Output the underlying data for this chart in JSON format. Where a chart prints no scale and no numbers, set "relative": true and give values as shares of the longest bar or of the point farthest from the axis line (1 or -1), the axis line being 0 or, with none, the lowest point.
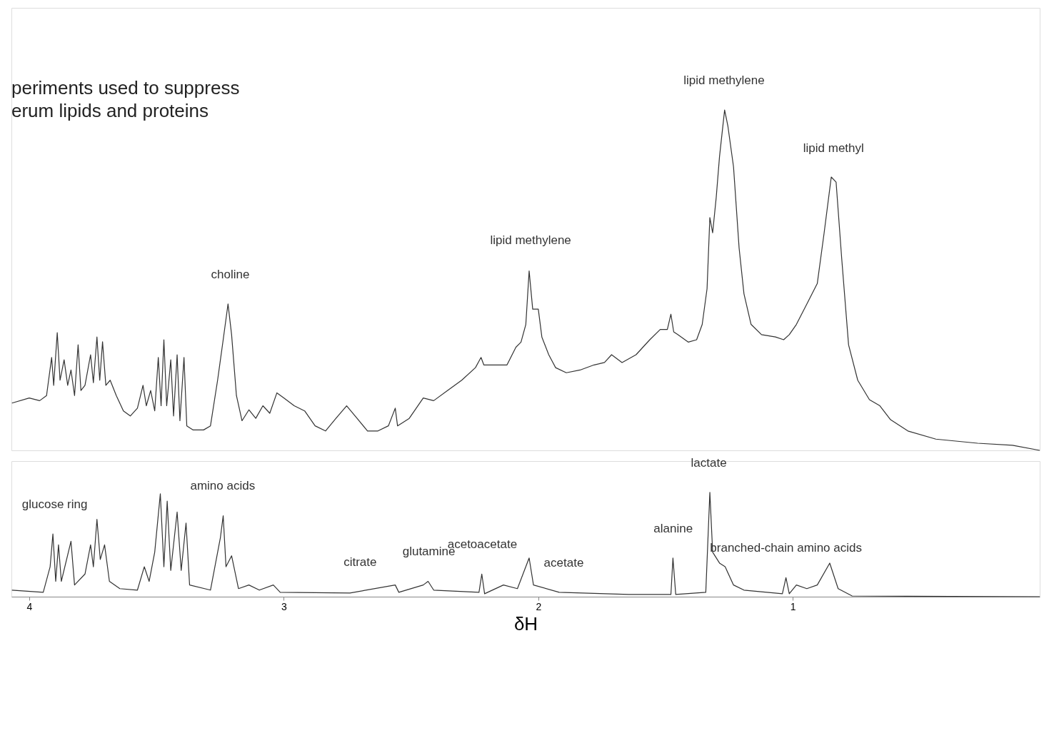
{
  "chart_data": [
    {
      "type": "line",
      "relative": true,
      "xlim": [
        4.07,
        0.03
      ],
      "xticks": [
        4,
        3,
        2,
        1
      ],
      "tick_labels": false,
      "grid": false,
      "marker": "none",
      "line_style": "solid",
      "annotations": [
        "periments used to suppress",
        "erum lipids and proteins",
        {
          "text": "choline",
          "x": 3.21,
          "y": 0.43
        },
        {
          "text": "lipid methylene",
          "x": 2.03,
          "y": 0.53
        },
        {
          "text": "lipid methylene",
          "x": 1.27,
          "y": 1.0
        },
        {
          "text": "lipid methyl",
          "x": 0.84,
          "y": 0.8
        }
      ],
      "x": [
        4.068,
        4.0,
        3.959,
        3.932,
        3.912,
        3.904,
        3.89,
        3.879,
        3.863,
        3.849,
        3.836,
        3.822,
        3.808,
        3.797,
        3.781,
        3.759,
        3.748,
        3.734,
        3.723,
        3.712,
        3.699,
        3.682,
        3.658,
        3.63,
        3.603,
        3.575,
        3.553,
        3.54,
        3.523,
        3.507,
        3.493,
        3.482,
        3.471,
        3.46,
        3.444,
        3.433,
        3.419,
        3.408,
        3.392,
        3.381,
        3.356,
        3.315,
        3.288,
        3.26,
        3.238,
        3.219,
        3.205,
        3.186,
        3.164,
        3.137,
        3.11,
        3.082,
        3.055,
        3.027,
        3.0,
        2.959,
        2.918,
        2.877,
        2.836,
        2.795,
        2.753,
        2.712,
        2.671,
        2.63,
        2.589,
        2.562,
        2.553,
        2.507,
        2.452,
        2.411,
        2.356,
        2.301,
        2.247,
        2.225,
        2.214,
        2.164,
        2.123,
        2.088,
        2.068,
        2.049,
        2.036,
        2.022,
        2.0,
        1.986,
        1.959,
        1.932,
        1.89,
        1.836,
        1.781,
        1.74,
        1.712,
        1.671,
        1.616,
        1.562,
        1.521,
        1.493,
        1.479,
        1.468,
        1.452,
        1.411,
        1.378,
        1.356,
        1.337,
        1.326,
        1.315,
        1.301,
        1.288,
        1.268,
        1.255,
        1.233,
        1.211,
        1.192,
        1.164,
        1.123,
        1.068,
        1.036,
        1.014,
        0.986,
        0.945,
        0.904,
        0.877,
        0.849,
        0.83,
        0.808,
        0.781,
        0.745,
        0.699,
        0.658,
        0.616,
        0.548,
        0.438,
        0.274,
        0.137,
        0.03
      ],
      "series": [
        {
          "color": "#333333",
          "values": [
            0.139,
            0.154,
            0.146,
            0.161,
            0.273,
            0.191,
            0.346,
            0.206,
            0.266,
            0.191,
            0.236,
            0.161,
            0.31,
            0.176,
            0.191,
            0.281,
            0.199,
            0.333,
            0.206,
            0.319,
            0.191,
            0.206,
            0.161,
            0.116,
            0.101,
            0.124,
            0.191,
            0.131,
            0.176,
            0.116,
            0.273,
            0.131,
            0.325,
            0.131,
            0.266,
            0.101,
            0.281,
            0.087,
            0.273,
            0.072,
            0.06,
            0.06,
            0.072,
            0.206,
            0.325,
            0.43,
            0.34,
            0.161,
            0.087,
            0.119,
            0.094,
            0.131,
            0.109,
            0.169,
            0.154,
            0.131,
            0.116,
            0.072,
            0.057,
            0.094,
            0.131,
            0.094,
            0.057,
            0.057,
            0.072,
            0.124,
            0.072,
            0.094,
            0.154,
            0.146,
            0.176,
            0.206,
            0.243,
            0.273,
            0.251,
            0.251,
            0.251,
            0.303,
            0.318,
            0.37,
            0.527,
            0.415,
            0.415,
            0.333,
            0.281,
            0.243,
            0.228,
            0.236,
            0.251,
            0.258,
            0.281,
            0.258,
            0.281,
            0.325,
            0.355,
            0.355,
            0.4,
            0.348,
            0.34,
            0.318,
            0.325,
            0.37,
            0.475,
            0.684,
            0.639,
            0.743,
            0.863,
            1.0,
            0.952,
            0.833,
            0.594,
            0.46,
            0.37,
            0.34,
            0.333,
            0.325,
            0.34,
            0.37,
            0.43,
            0.49,
            0.639,
            0.803,
            0.788,
            0.564,
            0.31,
            0.206,
            0.149,
            0.131,
            0.09,
            0.057,
            0.033,
            0.021,
            0.015,
            0.0
          ]
        }
      ]
    },
    {
      "type": "line",
      "relative": true,
      "xlim": [
        4.07,
        0.03
      ],
      "xticks": [
        4,
        3,
        2,
        1
      ],
      "tick_labels": "x",
      "xlabel": "δH",
      "grid": false,
      "marker": "none",
      "line_style": "solid",
      "annotations": [
        {
          "text": "glucose ring",
          "x": 3.9,
          "y": 0.6
        },
        {
          "text": "amino acids",
          "x": 3.24,
          "y": 0.78
        },
        {
          "text": "citrate",
          "x": 2.7,
          "y": 0.05
        },
        {
          "text": "glutamine",
          "x": 2.43,
          "y": 0.15
        },
        {
          "text": "acetoacetate",
          "x": 2.22,
          "y": 0.22
        },
        {
          "text": "acetate",
          "x": 1.9,
          "y": 0.04
        },
        {
          "text": "alanine",
          "x": 1.47,
          "y": 0.37
        },
        {
          "text": "lactate",
          "x": 1.33,
          "y": 1.0
        },
        {
          "text": "branched-chain amino acids",
          "x": 1.027,
          "y": 0.182
        }
      ],
      "x": [
        4.068,
        3.945,
        3.918,
        3.907,
        3.896,
        3.885,
        3.874,
        3.836,
        3.822,
        3.781,
        3.759,
        3.748,
        3.734,
        3.721,
        3.704,
        3.685,
        3.644,
        3.575,
        3.548,
        3.529,
        3.507,
        3.485,
        3.471,
        3.458,
        3.444,
        3.419,
        3.403,
        3.384,
        3.37,
        3.288,
        3.249,
        3.238,
        3.227,
        3.205,
        3.178,
        3.137,
        3.096,
        3.041,
        3.014,
        2.74,
        2.562,
        2.548,
        2.452,
        2.433,
        2.411,
        2.233,
        2.222,
        2.211,
        2.137,
        2.082,
        2.036,
        2.019,
        1.918,
        1.644,
        1.479,
        1.471,
        1.46,
        1.342,
        1.326,
        1.315,
        1.288,
        1.266,
        1.233,
        1.192,
        1.041,
        1.027,
        1.014,
        0.986,
        0.945,
        0.904,
        0.855,
        0.822,
        0.767,
        0.03
      ],
      "series": [
        {
          "color": "#333333",
          "values": [
            0.063,
            0.042,
            0.287,
            0.601,
            0.147,
            0.497,
            0.147,
            0.531,
            0.112,
            0.217,
            0.497,
            0.287,
            0.741,
            0.357,
            0.497,
            0.147,
            0.077,
            0.063,
            0.287,
            0.147,
            0.427,
            0.986,
            0.287,
            0.916,
            0.252,
            0.811,
            0.252,
            0.706,
            0.112,
            0.063,
            0.566,
            0.776,
            0.287,
            0.392,
            0.077,
            0.112,
            0.063,
            0.112,
            0.042,
            0.035,
            0.112,
            0.042,
            0.112,
            0.147,
            0.063,
            0.042,
            0.217,
            0.028,
            0.112,
            0.077,
            0.371,
            0.112,
            0.042,
            0.021,
            0.021,
            0.371,
            0.021,
            0.042,
            1.0,
            0.427,
            0.322,
            0.287,
            0.112,
            0.063,
            0.028,
            0.182,
            0.028,
            0.112,
            0.077,
            0.112,
            0.322,
            0.077,
            0.007,
            0.0
          ]
        }
      ]
    }
  ]
}
